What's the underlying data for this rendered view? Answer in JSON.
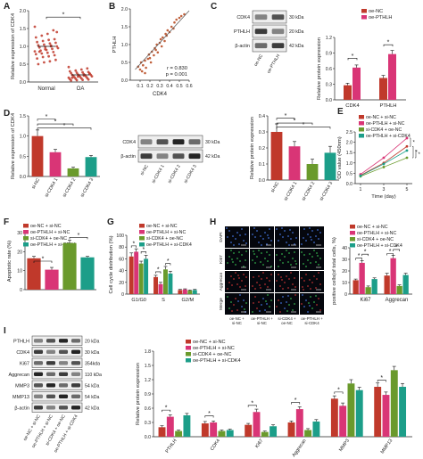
{
  "figure": {
    "panel_letters": [
      "A",
      "B",
      "C",
      "D",
      "E",
      "F",
      "G",
      "H",
      "I"
    ],
    "colors": {
      "normal": "#c0392b",
      "oa": "#c0392b",
      "red": "#c0392b",
      "pink": "#d93576",
      "green": "#6a9a2c",
      "teal": "#1c9e89",
      "axis": "#222222"
    }
  },
  "blots": {
    "C": {
      "rows": [
        "CDK4",
        "PTHLH",
        "β-actin"
      ],
      "kda": [
        "30 kDa",
        "20 kDa",
        "42 kDa"
      ],
      "lanes": [
        "oe-NC",
        "oe-PTHLH"
      ]
    },
    "D": {
      "rows": [
        "CDK4",
        "β-actin"
      ],
      "kda": [
        "30 kDa",
        "42 kDa"
      ],
      "lanes": [
        "si-NC",
        "si-CDK4 1",
        "si-CDK4 2",
        "si-CDK4 3"
      ]
    },
    "I": {
      "rows": [
        "PTHLH",
        "CDK4",
        "Ki67",
        "Aggrecan",
        "MMP3",
        "MMP13",
        "β-actin"
      ],
      "kda": [
        "20 kDa",
        "30 kDa",
        "354kda",
        "110 kDa",
        "54 kDa",
        "54 kDa",
        "42 kDa"
      ],
      "lanes": [
        "oe-NC + si-NC",
        "oe-PTHLH + si-NC",
        "si-CDK4 + oe-NC",
        "oe-PTHLH + si-CDK4"
      ]
    }
  },
  "micro": {
    "row_labels": [
      "DAPI",
      "Ki67",
      "Aggrecan",
      "Merge"
    ],
    "col_labels": [
      "oe-NC + si-NC",
      "oe-PTHLH + si-NC",
      "si-CDK4 + oe-NC",
      "oe-PTHLH + si-CDK4"
    ]
  },
  "chart_data": [
    {
      "panel": "A",
      "type": "scatter",
      "categories": [
        "Normal",
        "OA"
      ],
      "ylabel": "Relative expression of CDK4",
      "ylim": [
        0,
        2.0
      ],
      "yticks": [
        "0.0",
        "0.5",
        "1.0",
        "1.5",
        "2.0"
      ],
      "means": [
        1.0,
        0.2
      ],
      "points": {
        "Normal": [
          1.55,
          1.45,
          1.35,
          1.3,
          1.25,
          1.2,
          1.18,
          1.15,
          1.12,
          1.1,
          1.08,
          1.05,
          1.03,
          1.0,
          1.0,
          0.98,
          0.97,
          0.95,
          0.93,
          0.9,
          0.88,
          0.86,
          0.84,
          0.82,
          0.8,
          0.78,
          0.75,
          0.72,
          0.7,
          0.66,
          0.62,
          0.58,
          0.55,
          0.5,
          1.4,
          1.02,
          0.92,
          0.85
        ],
        "OA": [
          0.42,
          0.38,
          0.35,
          0.32,
          0.3,
          0.28,
          0.27,
          0.26,
          0.25,
          0.24,
          0.22,
          0.21,
          0.2,
          0.2,
          0.19,
          0.18,
          0.17,
          0.16,
          0.15,
          0.14,
          0.13,
          0.12,
          0.11,
          0.1,
          0.09,
          0.08,
          0.07,
          0.06,
          0.05,
          0.04,
          0.23,
          0.18,
          0.15,
          0.12
        ]
      },
      "significance": [
        "*"
      ]
    },
    {
      "panel": "B",
      "type": "scatter",
      "xlabel": "CDK4",
      "ylabel": "PTHLH",
      "xlim": [
        0,
        0.6
      ],
      "ylim": [
        0,
        2.0
      ],
      "xticks": [
        "0.1",
        "0.2",
        "0.3",
        "0.4",
        "0.5",
        "0.6"
      ],
      "yticks": [
        "0.0",
        "0.5",
        "1.0",
        "1.5",
        "2.0"
      ],
      "r_text": "r = 0.830",
      "p_text": "p = 0.001",
      "fit": [
        [
          0.05,
          0.3
        ],
        [
          0.6,
          1.95
        ]
      ],
      "points": [
        [
          0.08,
          0.38
        ],
        [
          0.1,
          0.3
        ],
        [
          0.11,
          0.5
        ],
        [
          0.13,
          0.42
        ],
        [
          0.15,
          0.55
        ],
        [
          0.16,
          0.35
        ],
        [
          0.18,
          0.6
        ],
        [
          0.19,
          0.72
        ],
        [
          0.2,
          0.62
        ],
        [
          0.21,
          0.5
        ],
        [
          0.22,
          0.8
        ],
        [
          0.24,
          0.7
        ],
        [
          0.25,
          0.9
        ],
        [
          0.26,
          0.85
        ],
        [
          0.27,
          1.0
        ],
        [
          0.28,
          0.78
        ],
        [
          0.3,
          1.05
        ],
        [
          0.31,
          1.15
        ],
        [
          0.32,
          0.95
        ],
        [
          0.33,
          1.2
        ],
        [
          0.35,
          1.1
        ],
        [
          0.36,
          1.3
        ],
        [
          0.37,
          1.25
        ],
        [
          0.38,
          1.4
        ],
        [
          0.4,
          1.35
        ],
        [
          0.42,
          1.5
        ],
        [
          0.44,
          1.45
        ],
        [
          0.45,
          1.62
        ],
        [
          0.47,
          1.7
        ],
        [
          0.5,
          1.75
        ],
        [
          0.52,
          1.8
        ],
        [
          0.55,
          1.85
        ],
        [
          0.15,
          0.2
        ],
        [
          0.12,
          0.25
        ]
      ]
    },
    {
      "panel": "C",
      "type": "bar",
      "categories": [
        "CDK4",
        "PTHLH"
      ],
      "series": [
        {
          "name": "oe-NC",
          "values": [
            0.28,
            0.42
          ]
        },
        {
          "name": "oe-PTHLH",
          "values": [
            0.62,
            0.88
          ]
        }
      ],
      "errors": [
        [
          0.04,
          0.05
        ],
        [
          0.05,
          0.07
        ]
      ],
      "ylabel": "Relative protein expression",
      "ylim": [
        0,
        1.2
      ],
      "yticks": [
        "0.0",
        "0.3",
        "0.6",
        "0.9",
        "1.2"
      ],
      "significance": [
        "*",
        "*"
      ]
    },
    {
      "panel": "D1",
      "type": "bar",
      "categories": [
        "si-NC",
        "si-CDK4 1",
        "si-CDK4 2",
        "si-CDK4 3"
      ],
      "values": [
        1.0,
        0.6,
        0.2,
        0.48
      ],
      "errors": [
        0.15,
        0.07,
        0.03,
        0.04
      ],
      "ylabel": "Relative expression of CDK4",
      "ylim": [
        0,
        1.5
      ],
      "yticks": [
        "0.0",
        "0.5",
        "1.0",
        "1.5"
      ],
      "significance": [
        "*",
        "*",
        "*"
      ]
    },
    {
      "panel": "D2",
      "type": "bar",
      "categories": [
        "si-NC",
        "si-CDK4 1",
        "si-CDK4 2",
        "si-CDK4 3"
      ],
      "values": [
        0.3,
        0.21,
        0.1,
        0.17
      ],
      "errors": [
        0.05,
        0.03,
        0.03,
        0.04
      ],
      "ylabel": "Relative protein expression",
      "ylim": [
        0,
        0.4
      ],
      "yticks": [
        "0.0",
        "0.1",
        "0.2",
        "0.3",
        "0.4"
      ],
      "significance": [
        "*",
        "*",
        "*"
      ]
    },
    {
      "panel": "E",
      "type": "line",
      "x": [
        1,
        3,
        5
      ],
      "xticks": [
        "1",
        "3",
        "5"
      ],
      "xlabel": "Time (day)",
      "ylabel": "OD value (450nm)",
      "ylim": [
        0,
        2.5
      ],
      "yticks": [
        "0.0",
        "0.5",
        "1.0",
        "1.5",
        "2.0",
        "2.5"
      ],
      "series": [
        {
          "name": "oe-NC + si-NC",
          "values": [
            0.4,
            1.0,
            1.8
          ]
        },
        {
          "name": "oe-PTHLH + si-NC",
          "values": [
            0.45,
            1.25,
            2.2
          ]
        },
        {
          "name": "si-CDK4 + oe-NC",
          "values": [
            0.35,
            0.8,
            1.25
          ]
        },
        {
          "name": "oe-PTHLH + si-CDK4",
          "values": [
            0.38,
            0.95,
            1.6
          ]
        }
      ],
      "significance": [
        "*",
        "*",
        "*"
      ]
    },
    {
      "panel": "F",
      "type": "bar",
      "categories": [
        "oe-NC + si-NC",
        "oe-PTHLH + si-NC",
        "si-CDK4 + oe-NC",
        "oe-PTHLH + si-CDK4"
      ],
      "values": [
        16.5,
        10.5,
        24.5,
        17.0
      ],
      "errors": [
        1.0,
        1.2,
        1.5,
        0.5
      ],
      "ylabel": "Apoptotic rate (%)",
      "ylim": [
        0,
        30
      ],
      "yticks": [
        "0",
        "10",
        "20",
        "30"
      ],
      "significance": [
        "*",
        "*"
      ]
    },
    {
      "panel": "G",
      "type": "bar",
      "categories": [
        "G1/G0",
        "S",
        "G2/M"
      ],
      "series": [
        {
          "name": "oe-NC + si-NC",
          "values": [
            64,
            29,
            7
          ]
        },
        {
          "name": "oe-PTHLH + si-NC",
          "values": [
            72,
            17,
            8
          ]
        },
        {
          "name": "si-CDK4 + oe-NC",
          "values": [
            52,
            42,
            6
          ]
        },
        {
          "name": "oe-PTHLH + si-CDK4",
          "values": [
            60,
            35,
            7
          ]
        }
      ],
      "errors": [
        [
          6,
          3,
          1
        ],
        [
          5,
          3,
          1
        ],
        [
          4,
          5,
          1
        ],
        [
          6,
          4,
          1
        ]
      ],
      "ylabel": "Cell cycle distribution (%)",
      "ylim": [
        0,
        100
      ],
      "yticks": [
        "0",
        "20",
        "40",
        "60",
        "80",
        "100"
      ],
      "significance": [
        "*",
        "*",
        "*",
        "*"
      ]
    },
    {
      "panel": "H",
      "type": "bar",
      "categories": [
        "Ki67",
        "Aggrecan"
      ],
      "series": [
        {
          "name": "oe-NC + si-NC",
          "values": [
            12,
            16
          ]
        },
        {
          "name": "oe-PTHLH + si-NC",
          "values": [
            27,
            31
          ]
        },
        {
          "name": "si-CDK4 + oe-NC",
          "values": [
            6,
            7
          ]
        },
        {
          "name": "oe-PTHLH + si-CDK4",
          "values": [
            13,
            16.5
          ]
        }
      ],
      "errors": [
        [
          1,
          2
        ],
        [
          2,
          2.5
        ],
        [
          1,
          1
        ],
        [
          1,
          1.5
        ]
      ],
      "ylabel": "positive cells(of total cells, %)",
      "ylim": [
        0,
        40
      ],
      "yticks": [
        "0",
        "10",
        "20",
        "30",
        "40"
      ],
      "significance": [
        "*",
        "*",
        "*",
        "*"
      ]
    },
    {
      "panel": "I",
      "type": "bar",
      "categories": [
        "PTHLH",
        "CDK4",
        "Ki67",
        "Aggrecan",
        "MMP3",
        "MMP13"
      ],
      "series": [
        {
          "name": "oe-NC + si-NC",
          "values": [
            0.2,
            0.28,
            0.25,
            0.3,
            0.8,
            1.05
          ]
        },
        {
          "name": "oe-PTHLH + si-NC",
          "values": [
            0.42,
            0.3,
            0.52,
            0.58,
            0.65,
            0.88
          ]
        },
        {
          "name": "si-CDK4 + oe-NC",
          "values": [
            0.12,
            0.12,
            0.1,
            0.14,
            1.12,
            1.4
          ]
        },
        {
          "name": "oe-PTHLH + si-CDK4",
          "values": [
            0.45,
            0.14,
            0.22,
            0.32,
            0.98,
            1.05
          ]
        }
      ],
      "errors": [
        [
          0.03,
          0.04,
          0.03,
          0.03,
          0.06,
          0.08
        ],
        [
          0.04,
          0.03,
          0.06,
          0.05,
          0.06,
          0.06
        ],
        [
          0.02,
          0.02,
          0.02,
          0.03,
          0.08,
          0.08
        ],
        [
          0.04,
          0.02,
          0.03,
          0.04,
          0.06,
          0.07
        ]
      ],
      "ylabel": "Relative protein expression",
      "ylim": [
        0,
        1.8
      ],
      "yticks": [
        "0.0",
        "0.3",
        "0.6",
        "0.9",
        "1.2",
        "1.5",
        "1.8"
      ],
      "significance": [
        "*",
        "*",
        "*",
        "*",
        "*",
        "*"
      ]
    }
  ]
}
